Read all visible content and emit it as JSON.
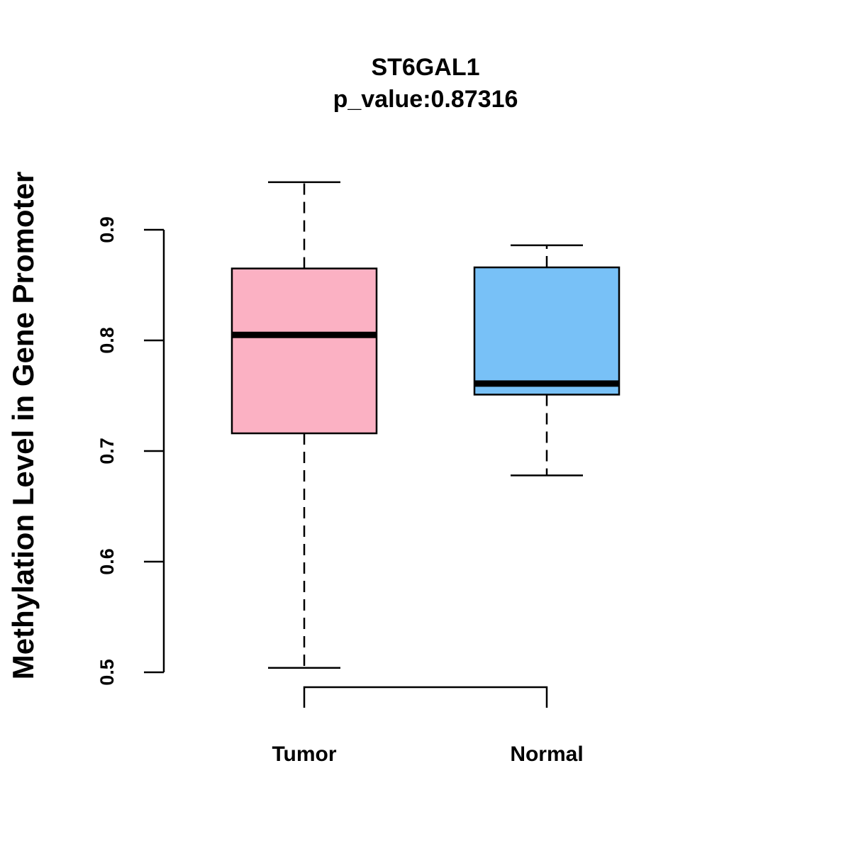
{
  "chart_data": {
    "type": "boxplot",
    "title": "ST6GAL1",
    "subtitle": "p_value:0.87316",
    "xlabel": "",
    "ylabel": "Methylation Level in Gene Promoter",
    "ylim": [
      0.5,
      0.9
    ],
    "yticks": [
      "0.5",
      "0.6",
      "0.7",
      "0.8",
      "0.9"
    ],
    "grid": false,
    "categories": [
      "Tumor",
      "Normal"
    ],
    "boxes": [
      {
        "name": "Tumor",
        "color": "#FBB1C3",
        "whisker_low": 0.504,
        "q1": 0.716,
        "median": 0.805,
        "q3": 0.865,
        "whisker_high": 0.943
      },
      {
        "name": "Normal",
        "color": "#78C1F7",
        "whisker_low": 0.678,
        "q1": 0.751,
        "median": 0.761,
        "q3": 0.866,
        "whisker_high": 0.886
      }
    ],
    "comparison_bracket": [
      "Tumor",
      "Normal"
    ]
  }
}
